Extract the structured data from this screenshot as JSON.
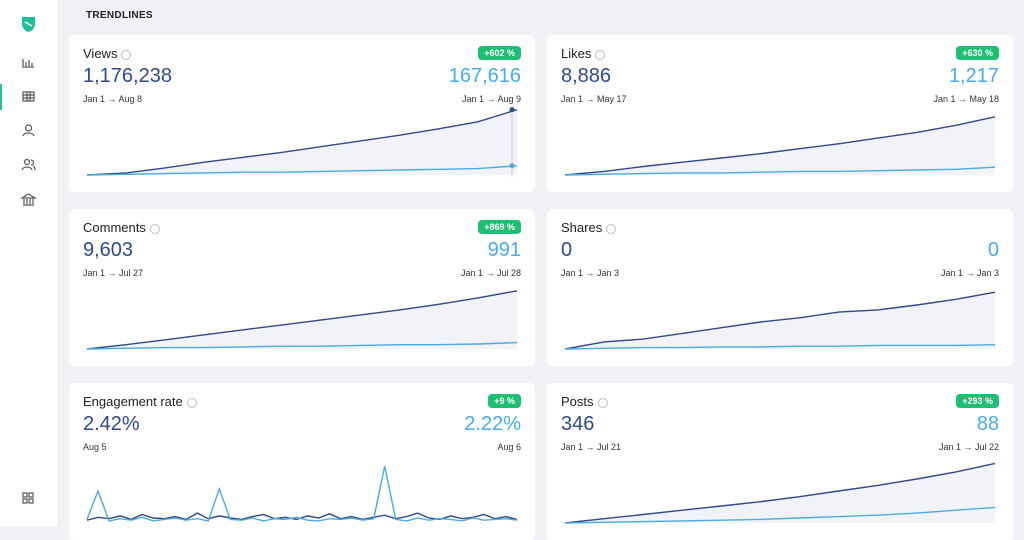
{
  "header": {
    "title": "TRENDLINES"
  },
  "cards": [
    {
      "title": "Views",
      "badge": "+602 %",
      "value": "1,176,238",
      "compare_value": "167,616",
      "date_range": "Jan 1 → Aug 8",
      "compare_date_range": "Jan 1 → Aug 9",
      "chart": {
        "type": "line",
        "ylim": [
          0,
          100
        ],
        "series": [
          {
            "color": "#2f4a8a",
            "values": [
              0,
              3,
              10,
              18,
              25,
              32,
              40,
              48,
              56,
              65,
              75,
              92
            ]
          },
          {
            "color": "#49ace3",
            "values": [
              0,
              1,
              2,
              3,
              4,
              4,
              5,
              6,
              7,
              8,
              9,
              13
            ]
          }
        ]
      }
    },
    {
      "title": "Likes",
      "badge": "+630 %",
      "value": "8,886",
      "compare_value": "1,217",
      "date_range": "Jan 1 → May 17",
      "compare_date_range": "Jan 1 → May 18",
      "chart": {
        "type": "line",
        "ylim": [
          0,
          100
        ],
        "series": [
          {
            "color": "#2f4a8a",
            "values": [
              0,
              5,
              12,
              18,
              24,
              30,
              37,
              44,
              52,
              60,
              70,
              82
            ]
          },
          {
            "color": "#49ace3",
            "values": [
              0,
              1,
              2,
              3,
              3,
              4,
              5,
              5,
              6,
              7,
              8,
              11
            ]
          }
        ]
      }
    },
    {
      "title": "Comments",
      "badge": "+869 %",
      "value": "9,603",
      "compare_value": "991",
      "date_range": "Jan 1 → Jul 27",
      "compare_date_range": "Jan 1 → Jul 28",
      "chart": {
        "type": "line",
        "ylim": [
          0,
          100
        ],
        "series": [
          {
            "color": "#2f4a8a",
            "values": [
              0,
              6,
              13,
              20,
              27,
              34,
              41,
              48,
              55,
              63,
              72,
              82
            ]
          },
          {
            "color": "#49ace3",
            "values": [
              0,
              1,
              2,
              2,
              3,
              4,
              4,
              5,
              6,
              6,
              7,
              9
            ]
          }
        ]
      }
    },
    {
      "title": "Shares",
      "value": "0",
      "compare_value": "0",
      "date_range": "Jan 1 → Jan 3",
      "compare_date_range": "Jan 1 → Jan 3",
      "chart": {
        "type": "line",
        "ylim": [
          0,
          100
        ],
        "series": [
          {
            "color": "#2f4a8a",
            "values": [
              0,
              10,
              14,
              22,
              30,
              38,
              44,
              52,
              55,
              62,
              70,
              80
            ]
          },
          {
            "color": "#49ace3",
            "values": [
              0,
              1,
              2,
              2,
              3,
              3,
              4,
              4,
              5,
              5,
              5,
              6
            ]
          }
        ]
      }
    },
    {
      "title": "Engagement rate",
      "badge": "+9 %",
      "value": "2.42%",
      "compare_value": "2.22%",
      "date_range": "Aug 5",
      "compare_date_range": "Aug 6",
      "chart": {
        "type": "line",
        "ylim": [
          0,
          100
        ],
        "series": [
          {
            "color": "#2f4a8a",
            "values": [
              4,
              8,
              6,
              10,
              5,
              12,
              7,
              6,
              9,
              5,
              14,
              6,
              10,
              7,
              5,
              9,
              12,
              6,
              8,
              5,
              10,
              7,
              13,
              6,
              9,
              5,
              8,
              11,
              6,
              9,
              14,
              7,
              5,
              10,
              6,
              8,
              12,
              6,
              9,
              5
            ]
          },
          {
            "color": "#49ace3",
            "values": [
              5,
              45,
              3,
              6,
              4,
              8,
              3,
              5,
              7,
              4,
              6,
              3,
              48,
              5,
              4,
              7,
              3,
              6,
              5,
              8,
              4,
              3,
              6,
              5,
              7,
              4,
              6,
              80,
              5,
              3,
              7,
              4,
              6,
              5,
              3,
              7,
              4,
              5,
              6,
              4
            ]
          }
        ]
      }
    },
    {
      "title": "Posts",
      "badge": "+293 %",
      "value": "346",
      "compare_value": "88",
      "date_range": "Jan 1 → Jul 21",
      "compare_date_range": "Jan 1 → Jul 22",
      "chart": {
        "type": "line",
        "ylim": [
          0,
          100
        ],
        "series": [
          {
            "color": "#2f4a8a",
            "values": [
              0,
              6,
              12,
              18,
              24,
              30,
              37,
              45,
              53,
              62,
              72,
              84
            ]
          },
          {
            "color": "#49ace3",
            "values": [
              0,
              1,
              2,
              3,
              4,
              5,
              7,
              9,
              11,
              14,
              18,
              22
            ]
          }
        ]
      }
    }
  ]
}
